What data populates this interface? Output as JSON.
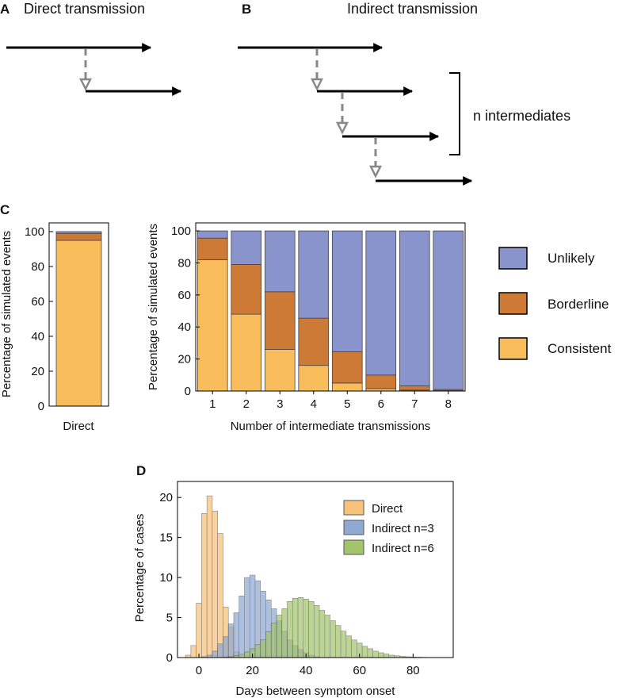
{
  "panels": {
    "a": {
      "letter": "A",
      "title": "Direct transmission"
    },
    "b": {
      "letter": "B",
      "title": "Indirect transmission",
      "bracket_label": "n intermediates"
    },
    "c": {
      "letter": "C"
    },
    "d": {
      "letter": "D"
    }
  },
  "colors": {
    "unlikely": "#8994cd",
    "borderline": "#cc7a35",
    "consistent": "#f8bd5a",
    "direct_hist": "#f9c27a",
    "indirect3_hist": "#8fa9d3",
    "indirect6_hist": "#a3c46c",
    "arrow": "#000000",
    "dashed": "#888888"
  },
  "chart_data": [
    {
      "id": "c-direct",
      "type": "bar",
      "stacked": true,
      "categories": [
        "Direct"
      ],
      "series": [
        {
          "name": "Consistent",
          "values": [
            95
          ]
        },
        {
          "name": "Borderline",
          "values": [
            4
          ]
        },
        {
          "name": "Unlikely",
          "values": [
            1
          ]
        }
      ],
      "xlabel": "",
      "ylabel": "Percentage of simulated events",
      "ylim": [
        0,
        105
      ],
      "yticks": [
        0,
        20,
        40,
        60,
        80,
        100
      ]
    },
    {
      "id": "c-indirect",
      "type": "bar",
      "stacked": true,
      "categories": [
        "1",
        "2",
        "3",
        "4",
        "5",
        "6",
        "7",
        "8"
      ],
      "series": [
        {
          "name": "Consistent",
          "values": [
            82,
            48,
            26,
            16,
            5,
            1.5,
            0.6,
            0.2
          ]
        },
        {
          "name": "Borderline",
          "values": [
            13.5,
            31,
            36,
            29.5,
            19.5,
            8.5,
            2.6,
            0.8
          ]
        },
        {
          "name": "Unlikely",
          "values": [
            4.5,
            21,
            38,
            54.5,
            75.5,
            90,
            96.8,
            99
          ]
        }
      ],
      "xlabel": "Number of intermediate transmissions",
      "ylabel": "Percentage of simulated events",
      "ylim": [
        0,
        105
      ],
      "yticks": [
        0,
        20,
        40,
        60,
        80,
        100
      ],
      "legend": {
        "position": "right",
        "entries": [
          "Unlikely",
          "Borderline",
          "Consistent"
        ]
      }
    },
    {
      "id": "d-hist",
      "type": "bar",
      "subtype": "histogram",
      "xlabel": "Days between symptom onset",
      "ylabel": "Percentage of cases",
      "xlim": [
        -8,
        95
      ],
      "ylim": [
        0,
        22
      ],
      "xticks": [
        0,
        20,
        40,
        60,
        80
      ],
      "yticks": [
        0,
        5,
        10,
        15,
        20
      ],
      "bin_width": 2,
      "legend": {
        "position": "top-right",
        "entries": [
          "Direct",
          "Indirect n=3",
          "Indirect n=6"
        ]
      },
      "series": [
        {
          "name": "Direct",
          "x": [
            -4,
            -2,
            0,
            2,
            4,
            6,
            8,
            10,
            12,
            14
          ],
          "values": [
            0.3,
            1.5,
            6.8,
            18.0,
            20.2,
            18.3,
            15.5,
            6.3,
            3.8,
            0.7
          ]
        },
        {
          "name": "Indirect n=3",
          "x": [
            2,
            4,
            6,
            8,
            10,
            12,
            14,
            16,
            18,
            20,
            22,
            24,
            26,
            28,
            30,
            32,
            34,
            36,
            38,
            40,
            42,
            44
          ],
          "values": [
            0.1,
            0.3,
            0.8,
            1.7,
            2.6,
            4.2,
            5.6,
            7.7,
            10.0,
            10.3,
            9.6,
            8.3,
            7.2,
            6.1,
            4.6,
            3.3,
            2.2,
            1.5,
            1.0,
            0.6,
            0.3,
            0.1
          ]
        },
        {
          "name": "Indirect n=6",
          "x": [
            10,
            12,
            14,
            16,
            18,
            20,
            22,
            24,
            26,
            28,
            30,
            32,
            34,
            36,
            38,
            40,
            42,
            44,
            46,
            48,
            50,
            52,
            54,
            56,
            58,
            60,
            62,
            64,
            66,
            68,
            70,
            72,
            74,
            76,
            78,
            80,
            82,
            84,
            86,
            88
          ],
          "values": [
            0.05,
            0.1,
            0.25,
            0.4,
            0.7,
            1.1,
            1.6,
            2.2,
            3.2,
            4.3,
            5.3,
            6.1,
            7.0,
            7.4,
            7.5,
            7.3,
            7.0,
            6.5,
            5.9,
            5.3,
            4.6,
            4.0,
            3.3,
            2.7,
            2.2,
            1.8,
            1.4,
            1.1,
            0.8,
            0.6,
            0.45,
            0.3,
            0.22,
            0.15,
            0.1,
            0.07,
            0.05,
            0.03,
            0.02,
            0.01
          ]
        }
      ]
    }
  ]
}
